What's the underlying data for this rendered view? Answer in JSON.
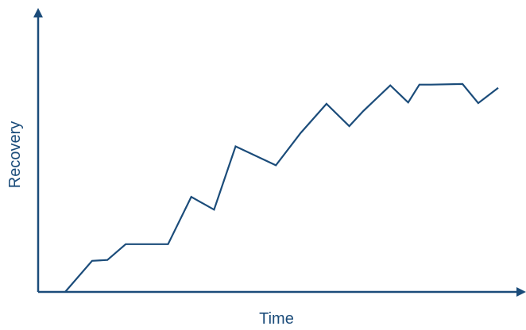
{
  "chart_data": {
    "type": "line",
    "xlabel": "Time",
    "ylabel": "Recovery",
    "grid": false,
    "legend": "none",
    "ticks": false,
    "colors": {
      "axis": "#1b4c7a",
      "series": "#1b4c7a",
      "text": "#1b4c7a"
    },
    "xlim": [
      0,
      100
    ],
    "ylim": [
      0,
      100
    ],
    "series": [
      {
        "x": [
          0,
          6.5,
          10.2,
          14.6,
          24.8,
          30.4,
          35.9,
          41.1,
          50.8,
          56.8,
          63.0,
          68.5,
          71.9,
          78.4,
          82.7,
          85.4,
          88.2,
          95.8,
          99.6,
          104.4
        ],
        "y": [
          0,
          13.8,
          14.2,
          21.2,
          21.2,
          42.2,
          36.5,
          64.6,
          56.2,
          70.6,
          83.5,
          73.6,
          80.3,
          91.7,
          84.1,
          92.0,
          92.0,
          92.3,
          83.8,
          90.6
        ]
      }
    ]
  }
}
